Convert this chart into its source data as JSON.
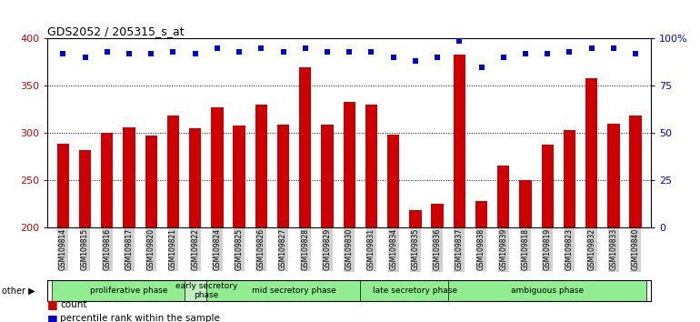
{
  "title": "GDS2052 / 205315_s_at",
  "samples": [
    "GSM109814",
    "GSM109815",
    "GSM109816",
    "GSM109817",
    "GSM109820",
    "GSM109821",
    "GSM109822",
    "GSM109824",
    "GSM109825",
    "GSM109826",
    "GSM109827",
    "GSM109828",
    "GSM109829",
    "GSM109830",
    "GSM109831",
    "GSM109834",
    "GSM109835",
    "GSM109836",
    "GSM109837",
    "GSM109838",
    "GSM109839",
    "GSM109818",
    "GSM109819",
    "GSM109823",
    "GSM109832",
    "GSM109833",
    "GSM109840"
  ],
  "counts": [
    288,
    282,
    300,
    306,
    297,
    318,
    305,
    327,
    308,
    330,
    309,
    370,
    309,
    333,
    330,
    298,
    218,
    225,
    383,
    228,
    265,
    250,
    287,
    303,
    358,
    310,
    318
  ],
  "percentile": [
    92,
    90,
    93,
    92,
    92,
    93,
    92,
    95,
    93,
    95,
    93,
    95,
    93,
    93,
    93,
    90,
    88,
    90,
    99,
    85,
    90,
    92,
    92,
    93,
    95,
    95,
    92
  ],
  "phases": [
    {
      "label": "proliferative phase",
      "start": 0,
      "end": 6,
      "color": "#90EE90"
    },
    {
      "label": "early secretory\nphase",
      "start": 6,
      "end": 7,
      "color": "#c0f0c0"
    },
    {
      "label": "mid secretory phase",
      "start": 7,
      "end": 14,
      "color": "#90EE90"
    },
    {
      "label": "late secretory phase",
      "start": 14,
      "end": 18,
      "color": "#90EE90"
    },
    {
      "label": "ambiguous phase",
      "start": 18,
      "end": 26,
      "color": "#90EE90"
    }
  ],
  "bar_color": "#CC0000",
  "dot_color": "#0000CC",
  "ymin": 200,
  "ymax": 400,
  "yticks_left": [
    200,
    250,
    300,
    350,
    400
  ],
  "yticks_right": [
    0,
    25,
    50,
    75,
    100
  ],
  "tick_bg": "#d0d0d0",
  "bg_color": "#ffffff"
}
